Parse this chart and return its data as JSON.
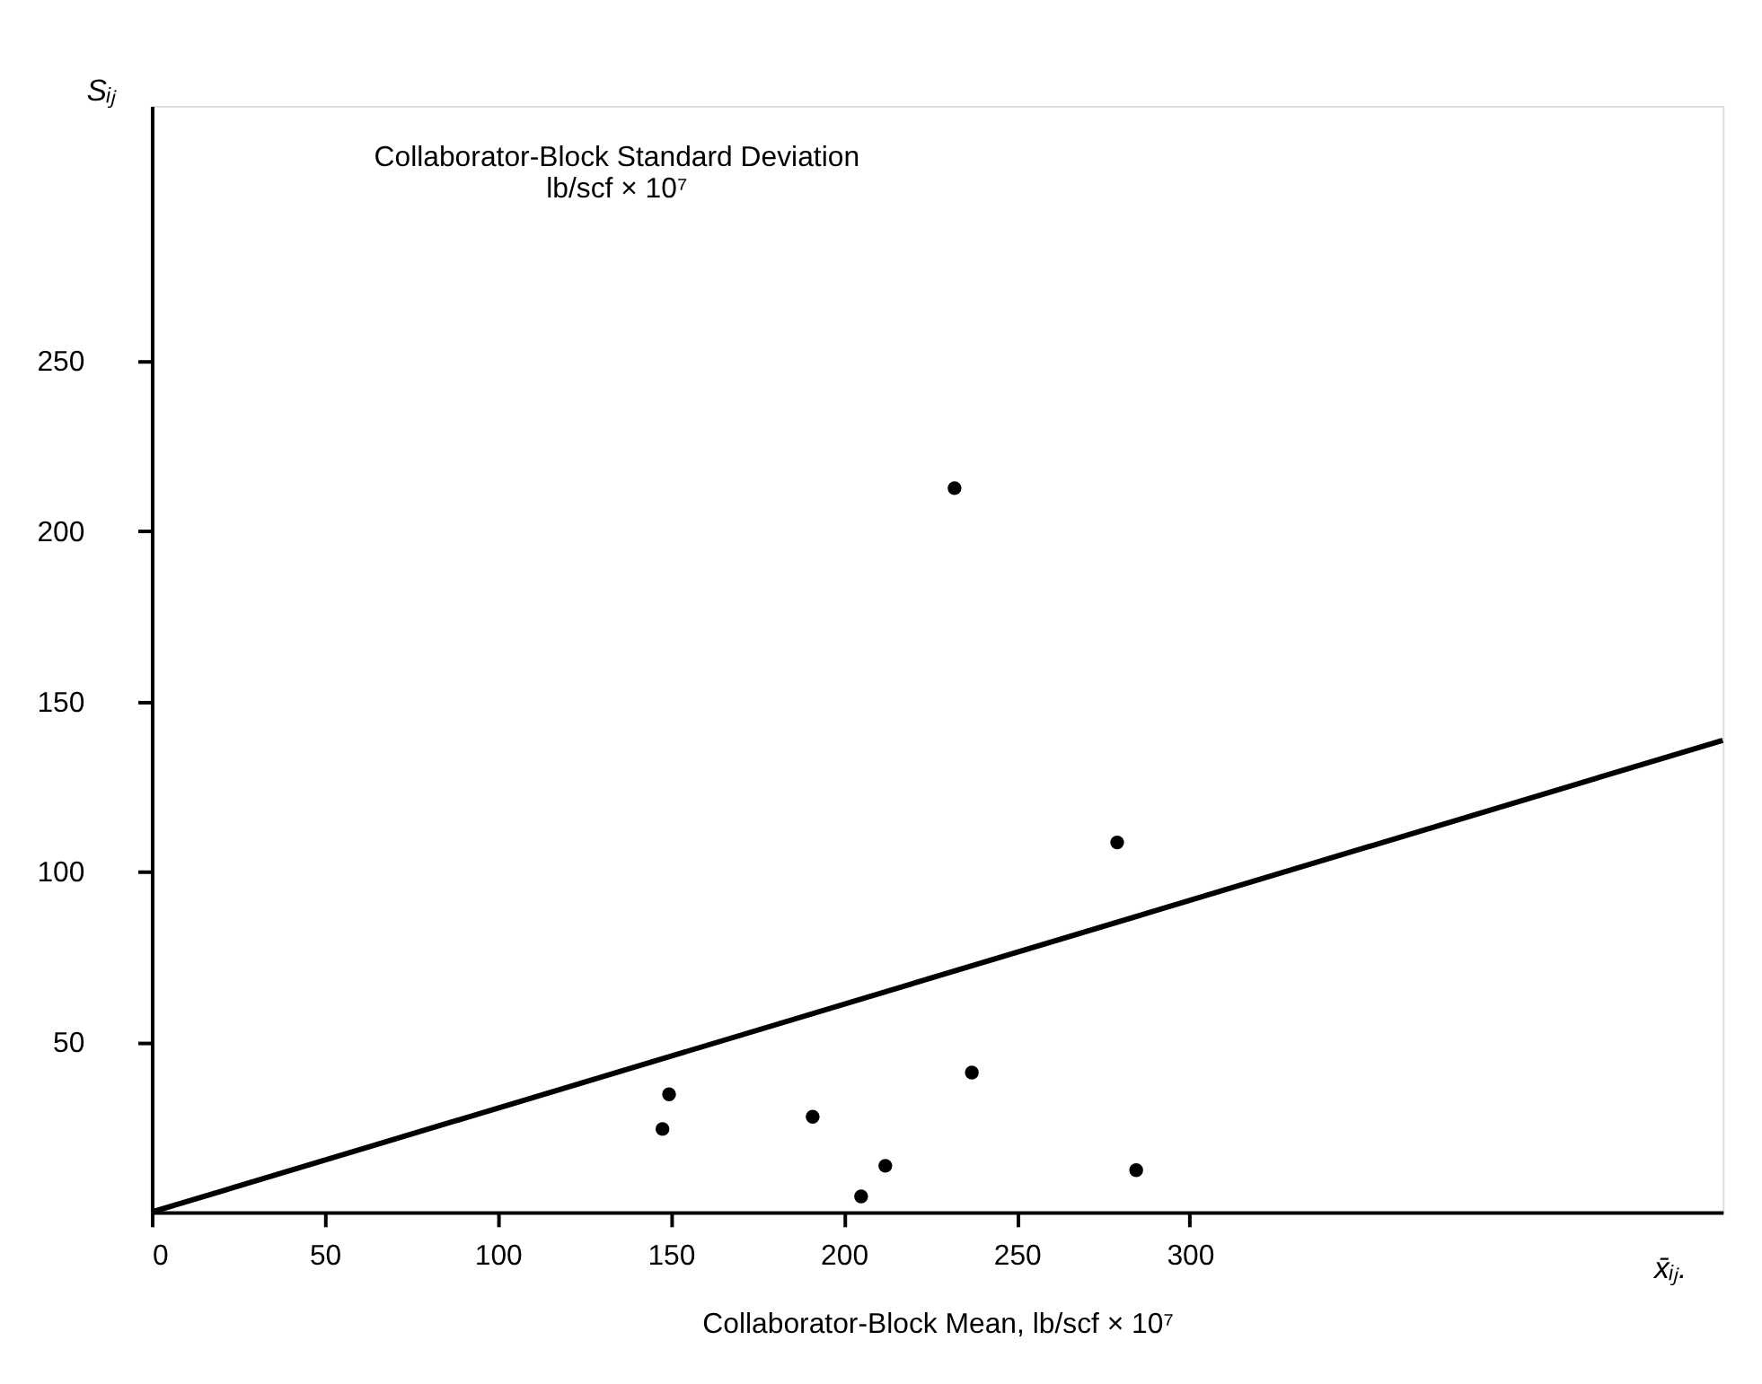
{
  "chart_data": {
    "type": "scatter",
    "xlabel": "Collaborator-Block Mean, lb/scf × 10⁷",
    "ylabel": "Collaborator-Block Standard Deviation\nlb/scf × 10⁷",
    "annotations": [
      "Sᵢⱼ",
      "x̄ᵢⱼ."
    ],
    "series": [
      {
        "color": "#000000",
        "marker": "circle",
        "x": [
          149.5,
          147.6,
          191,
          205,
          212,
          237,
          279,
          284.5,
          232
        ],
        "values": [
          34.6,
          24.4,
          28,
          4.6,
          13.6,
          41,
          108.6,
          12.3,
          212.7
        ]
      },
      {
        "type": "line",
        "color": "#000000",
        "line_style": "solid",
        "x": [
          0,
          454
        ],
        "values": [
          0,
          138.6
        ]
      }
    ],
    "xlim": [
      0,
      454
    ],
    "ylim": [
      0,
      325
    ],
    "xticks": [
      0,
      50,
      100,
      150,
      200,
      250,
      300
    ],
    "yticks": [
      50,
      100,
      150,
      200,
      250
    ],
    "grid": false
  }
}
